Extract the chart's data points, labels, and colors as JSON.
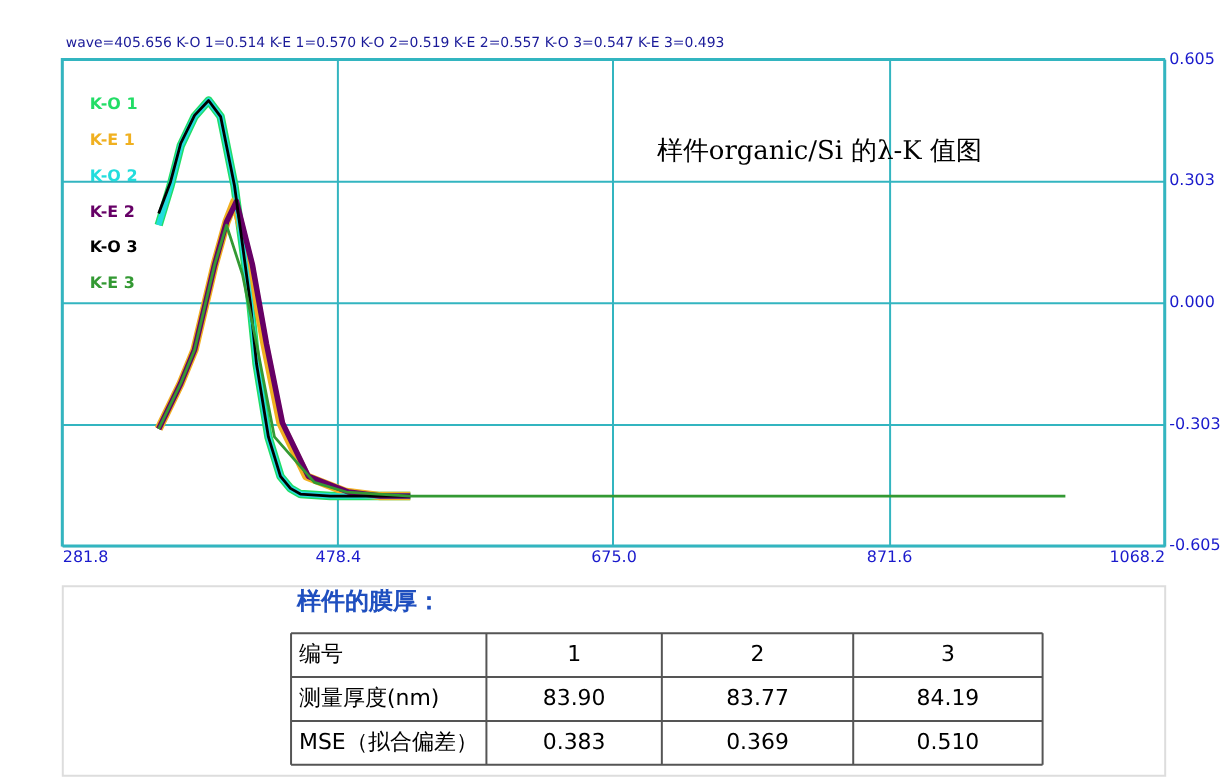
{
  "chart_data": {
    "type": "line",
    "title": "样件organic/Si 的λ-K 值图",
    "subtitle": "wave=405.656  K-O 1=0.514  K-E 1=0.570  K-O 2=0.519  K-E 2=0.557  K-O 3=0.547  K-E 3=0.493",
    "xlim": [
      281.8,
      1068.2
    ],
    "xticks": [
      281.8,
      478.4,
      {
        "value": 675,
        "label": "675.0"
      },
      871.6,
      1068.2
    ],
    "ylim": [
      -0.605,
      0.605
    ],
    "yticks": [
      0.605,
      0.303,
      {
        "value": 0,
        "label": "0.000"
      },
      -0.303,
      -0.605
    ],
    "grid": true,
    "legend": "top left",
    "marker": "none",
    "line_style": "solid",
    "series": [
      {
        "name": "K-O 1",
        "color": "#22dd66",
        "x": [
          350.9,
          359.4,
          366.6,
          376.5,
          386.5,
          395.1,
          405.0,
          410.7,
          416.4,
          420.7,
          429.2,
          437.8,
          444.9,
          452.0,
          473.4,
          530.4
        ],
        "values": [
          0.192,
          0.29,
          0.389,
          0.462,
          0.502,
          0.462,
          0.29,
          0.143,
          -0.005,
          -0.153,
          -0.335,
          -0.433,
          -0.463,
          -0.477,
          -0.482,
          -0.482
        ]
      },
      {
        "name": "K-E 1",
        "color": "#f0b020",
        "x": [
          350.9,
          366.6,
          376.5,
          390.8,
          399.3,
          405.0,
          416.4,
          426.4,
          437.8,
          456.3,
          484.8,
          509.0,
          530.4
        ],
        "values": [
          -0.315,
          -0.202,
          -0.118,
          0.093,
          0.2,
          0.251,
          0.093,
          -0.103,
          -0.3,
          -0.433,
          -0.472,
          -0.482,
          -0.482
        ]
      },
      {
        "name": "K-O 2",
        "color": "#22dddd",
        "x": [
          350.9,
          359.4,
          366.6,
          376.5,
          386.5,
          395.1,
          405.0,
          410.7,
          416.4,
          420.7,
          429.2,
          437.8,
          444.9,
          452.0,
          473.4,
          530.4
        ],
        "values": [
          0.192,
          0.29,
          0.389,
          0.462,
          0.502,
          0.462,
          0.29,
          0.143,
          -0.005,
          -0.153,
          -0.335,
          -0.433,
          -0.463,
          -0.477,
          -0.482,
          -0.482
        ]
      },
      {
        "name": "K-E 2",
        "color": "#660066",
        "x": [
          350.9,
          366.6,
          376.5,
          390.8,
          399.3,
          406.4,
          417.8,
          427.8,
          439.2,
          457.7,
          486.2,
          509.0,
          530.4
        ],
        "values": [
          -0.315,
          -0.202,
          -0.118,
          0.093,
          0.2,
          0.251,
          0.093,
          -0.103,
          -0.3,
          -0.433,
          -0.472,
          -0.482,
          -0.482
        ]
      },
      {
        "name": "K-O 3",
        "color": "#000000",
        "x": [
          350.9,
          359.4,
          366.6,
          376.5,
          386.5,
          395.1,
          405.0,
          410.7,
          416.4,
          420.7,
          429.2,
          437.8,
          444.9,
          452.0,
          473.4,
          530.4
        ],
        "values": [
          0.221,
          0.3,
          0.395,
          0.465,
          0.502,
          0.462,
          0.29,
          0.143,
          -0.005,
          -0.153,
          -0.335,
          -0.433,
          -0.463,
          -0.477,
          -0.482,
          -0.482
        ]
      },
      {
        "name": "K-E 3",
        "color": "#339933",
        "x": [
          350.9,
          366.6,
          376.5,
          390.8,
          399.3,
          410.7,
          420.7,
          433.5,
          462.0,
          484.8,
          530.4,
          997.7
        ],
        "values": [
          -0.315,
          -0.202,
          -0.118,
          0.093,
          0.192,
          0.069,
          -0.103,
          -0.335,
          -0.448,
          -0.472,
          -0.482,
          -0.482
        ]
      }
    ],
    "annotations": [
      "样件的膜厚：",
      "编号",
      "1",
      "2",
      "3",
      "测量厚度(nm)",
      "83.90",
      "83.77",
      "84.19",
      "MSE（拟合偏差）",
      "0.383",
      "0.369",
      "0.510"
    ]
  }
}
